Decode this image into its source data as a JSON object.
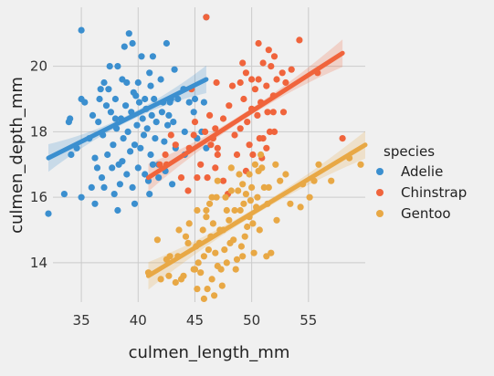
{
  "chart_data": {
    "type": "scatter",
    "title": "",
    "xlabel": "culmen_length_mm",
    "ylabel": "culmen_depth_mm",
    "xlim": [
      32.5,
      60
    ],
    "ylim": [
      12.8,
      21.8
    ],
    "xticks": [
      35,
      40,
      45,
      50,
      55
    ],
    "yticks": [
      14,
      16,
      18,
      20
    ],
    "grid": true,
    "legend": {
      "title": "species",
      "position": "right"
    },
    "series": [
      {
        "name": "Adelie",
        "color": "#3b8fcf",
        "regression": {
          "x_start": 32.1,
          "x_end": 46.0,
          "y_start": 17.2,
          "y_end": 19.6
        },
        "points": [
          [
            35.0,
            21.1
          ],
          [
            38.8,
            20.6
          ],
          [
            39.2,
            21.0
          ],
          [
            39.5,
            20.7
          ],
          [
            40.3,
            20.3
          ],
          [
            41.3,
            20.3
          ],
          [
            42.5,
            20.7
          ],
          [
            43.2,
            19.9
          ],
          [
            46.0,
            21.5
          ],
          [
            36.7,
            19.3
          ],
          [
            37.0,
            19.5
          ],
          [
            37.5,
            20.0
          ],
          [
            38.2,
            20.0
          ],
          [
            38.6,
            19.6
          ],
          [
            39.0,
            19.5
          ],
          [
            39.8,
            19.1
          ],
          [
            40.6,
            19.0
          ],
          [
            41.0,
            19.8
          ],
          [
            42.0,
            19.6
          ],
          [
            42.9,
            19.0
          ],
          [
            44.0,
            19.3
          ],
          [
            45.8,
            18.9
          ],
          [
            34.0,
            18.4
          ],
          [
            34.6,
            17.5
          ],
          [
            35.0,
            19.0
          ],
          [
            35.7,
            17.8
          ],
          [
            36.0,
            18.5
          ],
          [
            36.2,
            17.2
          ],
          [
            36.5,
            18.3
          ],
          [
            36.9,
            17.9
          ],
          [
            37.2,
            18.8
          ],
          [
            37.3,
            17.3
          ],
          [
            37.6,
            18.6
          ],
          [
            37.8,
            17.6
          ],
          [
            38.0,
            19.0
          ],
          [
            38.1,
            18.1
          ],
          [
            38.3,
            17.0
          ],
          [
            38.5,
            18.4
          ],
          [
            38.7,
            17.8
          ],
          [
            38.9,
            18.8
          ],
          [
            39.1,
            18.0
          ],
          [
            39.3,
            17.4
          ],
          [
            39.4,
            18.6
          ],
          [
            39.6,
            19.2
          ],
          [
            39.7,
            17.6
          ],
          [
            39.9,
            18.2
          ],
          [
            40.1,
            18.9
          ],
          [
            40.2,
            17.5
          ],
          [
            40.4,
            18.4
          ],
          [
            40.5,
            17.9
          ],
          [
            40.7,
            18.7
          ],
          [
            40.8,
            18.1
          ],
          [
            41.1,
            17.3
          ],
          [
            41.2,
            18.5
          ],
          [
            41.4,
            19.0
          ],
          [
            41.5,
            17.8
          ],
          [
            41.6,
            18.3
          ],
          [
            41.8,
            17.0
          ],
          [
            42.1,
            18.6
          ],
          [
            42.2,
            18.9
          ],
          [
            42.3,
            17.7
          ],
          [
            42.6,
            18.2
          ],
          [
            42.8,
            18.9
          ],
          [
            43.1,
            18.3
          ],
          [
            43.3,
            17.5
          ],
          [
            43.5,
            19.0
          ],
          [
            44.1,
            18.0
          ],
          [
            44.5,
            18.9
          ],
          [
            45.0,
            19.0
          ],
          [
            45.6,
            18.0
          ],
          [
            36.4,
            16.9
          ],
          [
            36.8,
            16.6
          ],
          [
            37.0,
            16.3
          ],
          [
            37.7,
            16.9
          ],
          [
            38.4,
            16.4
          ],
          [
            38.6,
            17.1
          ],
          [
            39.0,
            16.7
          ],
          [
            39.5,
            16.3
          ],
          [
            40.0,
            16.9
          ],
          [
            40.6,
            16.7
          ],
          [
            41.0,
            16.1
          ],
          [
            41.3,
            17.0
          ],
          [
            41.8,
            16.6
          ],
          [
            35.0,
            16.0
          ],
          [
            33.5,
            16.1
          ],
          [
            32.1,
            15.5
          ],
          [
            35.9,
            16.3
          ],
          [
            36.2,
            15.8
          ],
          [
            37.9,
            16.1
          ],
          [
            38.2,
            15.6
          ],
          [
            39.7,
            15.8
          ],
          [
            40.9,
            16.5
          ],
          [
            42.4,
            16.8
          ],
          [
            43.0,
            16.4
          ],
          [
            44.1,
            17.3
          ],
          [
            34.1,
            17.3
          ],
          [
            33.9,
            18.3
          ],
          [
            35.3,
            18.9
          ],
          [
            36.6,
            19.0
          ],
          [
            37.4,
            19.3
          ],
          [
            38.0,
            18.4
          ],
          [
            40.0,
            19.5
          ],
          [
            41.1,
            19.4
          ],
          [
            42.7,
            18.5
          ],
          [
            44.9,
            18.6
          ],
          [
            45.2,
            17.8
          ],
          [
            46.0,
            17.5
          ]
        ]
      },
      {
        "name": "Chinstrap",
        "color": "#f0643c",
        "regression": {
          "x_start": 40.9,
          "x_end": 58.0,
          "y_start": 16.6,
          "y_end": 20.4
        },
        "points": [
          [
            45.5,
            17.0
          ],
          [
            46.1,
            16.6
          ],
          [
            46.8,
            16.9
          ],
          [
            47.0,
            17.3
          ],
          [
            47.5,
            16.5
          ],
          [
            47.9,
            16.1
          ],
          [
            46.4,
            17.6
          ],
          [
            45.9,
            18.0
          ],
          [
            44.5,
            17.5
          ],
          [
            44.9,
            17.9
          ],
          [
            43.3,
            17.6
          ],
          [
            42.9,
            17.9
          ],
          [
            42.4,
            17.3
          ],
          [
            41.9,
            17.0
          ],
          [
            43.8,
            16.6
          ],
          [
            44.4,
            16.2
          ],
          [
            46.3,
            18.5
          ],
          [
            46.8,
            18.1
          ],
          [
            47.5,
            18.4
          ],
          [
            48.0,
            18.8
          ],
          [
            48.5,
            17.9
          ],
          [
            49.0,
            18.1
          ],
          [
            49.3,
            19.0
          ],
          [
            49.6,
            18.3
          ],
          [
            49.8,
            17.6
          ],
          [
            50.0,
            18.7
          ],
          [
            50.3,
            19.3
          ],
          [
            50.5,
            18.5
          ],
          [
            50.6,
            19.6
          ],
          [
            50.8,
            18.9
          ],
          [
            51.0,
            20.1
          ],
          [
            51.3,
            19.4
          ],
          [
            51.4,
            18.6
          ],
          [
            51.7,
            20.0
          ],
          [
            51.9,
            19.1
          ],
          [
            52.0,
            18.0
          ],
          [
            52.2,
            19.6
          ],
          [
            52.7,
            19.8
          ],
          [
            52.8,
            18.6
          ],
          [
            53.5,
            19.9
          ],
          [
            54.2,
            20.8
          ],
          [
            55.8,
            19.8
          ],
          [
            58.0,
            17.8
          ],
          [
            51.0,
            17.8
          ],
          [
            50.1,
            17.3
          ],
          [
            49.5,
            16.8
          ],
          [
            48.7,
            17.3
          ],
          [
            49.0,
            19.5
          ],
          [
            49.5,
            19.8
          ],
          [
            50.0,
            19.6
          ],
          [
            50.9,
            17.2
          ],
          [
            46.0,
            21.5
          ],
          [
            50.6,
            20.7
          ],
          [
            49.2,
            20.1
          ],
          [
            47.0,
            17.5
          ],
          [
            45.2,
            16.6
          ],
          [
            52.0,
            20.3
          ],
          [
            53.0,
            19.5
          ],
          [
            51.5,
            20.5
          ],
          [
            48.3,
            19.4
          ],
          [
            45.0,
            18.3
          ],
          [
            44.7,
            19.3
          ],
          [
            46.9,
            19.5
          ],
          [
            42.5,
            17.0
          ],
          [
            51.9,
            18.6
          ],
          [
            51.6,
            18.0
          ],
          [
            51.3,
            17.5
          ],
          [
            50.7,
            17.8
          ],
          [
            46.6,
            17.8
          ]
        ]
      },
      {
        "name": "Gentoo",
        "color": "#e8a845",
        "regression": {
          "x_start": 40.9,
          "x_end": 60.0,
          "y_start": 13.6,
          "y_end": 17.6
        },
        "points": [
          [
            40.9,
            13.7
          ],
          [
            41.7,
            14.7
          ],
          [
            42.0,
            13.5
          ],
          [
            42.5,
            14.1
          ],
          [
            42.8,
            14.2
          ],
          [
            43.3,
            13.4
          ],
          [
            43.5,
            14.2
          ],
          [
            43.6,
            15.0
          ],
          [
            44.0,
            13.6
          ],
          [
            44.4,
            14.6
          ],
          [
            44.5,
            15.2
          ],
          [
            45.0,
            13.8
          ],
          [
            45.1,
            14.5
          ],
          [
            45.2,
            15.6
          ],
          [
            45.3,
            14.0
          ],
          [
            45.4,
            14.6
          ],
          [
            45.5,
            13.7
          ],
          [
            45.7,
            15.0
          ],
          [
            45.8,
            14.2
          ],
          [
            46.0,
            15.4
          ],
          [
            46.1,
            13.2
          ],
          [
            46.2,
            14.4
          ],
          [
            46.3,
            15.8
          ],
          [
            46.4,
            14.8
          ],
          [
            46.5,
            13.5
          ],
          [
            46.6,
            15.2
          ],
          [
            46.8,
            14.3
          ],
          [
            46.9,
            16.0
          ],
          [
            47.0,
            13.9
          ],
          [
            47.2,
            15.0
          ],
          [
            47.3,
            13.8
          ],
          [
            47.5,
            15.0
          ],
          [
            47.6,
            14.4
          ],
          [
            47.7,
            16.0
          ],
          [
            47.8,
            14.0
          ],
          [
            48.0,
            15.3
          ],
          [
            48.1,
            14.6
          ],
          [
            48.2,
            16.2
          ],
          [
            48.4,
            14.7
          ],
          [
            48.5,
            15.6
          ],
          [
            48.7,
            14.1
          ],
          [
            48.8,
            16.2
          ],
          [
            49.0,
            15.6
          ],
          [
            49.1,
            14.5
          ],
          [
            49.2,
            16.4
          ],
          [
            49.3,
            15.8
          ],
          [
            49.4,
            14.8
          ],
          [
            49.5,
            16.1
          ],
          [
            49.6,
            15.1
          ],
          [
            49.8,
            16.7
          ],
          [
            49.9,
            15.9
          ],
          [
            50.0,
            16.3
          ],
          [
            50.1,
            15.2
          ],
          [
            50.2,
            14.3
          ],
          [
            50.4,
            15.7
          ],
          [
            50.5,
            16.0
          ],
          [
            50.7,
            15.0
          ],
          [
            50.8,
            17.3
          ],
          [
            51.1,
            16.3
          ],
          [
            51.3,
            14.2
          ],
          [
            51.5,
            16.3
          ],
          [
            52.1,
            17.0
          ],
          [
            52.2,
            15.3
          ],
          [
            53.4,
            15.8
          ],
          [
            54.3,
            15.7
          ],
          [
            55.1,
            16.0
          ],
          [
            55.9,
            17.0
          ],
          [
            59.6,
            17.0
          ],
          [
            58.6,
            17.2
          ],
          [
            57.0,
            16.5
          ],
          [
            52.5,
            16.5
          ],
          [
            51.7,
            14.3
          ],
          [
            51.4,
            15.8
          ],
          [
            50.6,
            16.8
          ],
          [
            50.3,
            17.0
          ],
          [
            49.8,
            15.4
          ],
          [
            49.2,
            14.2
          ],
          [
            48.6,
            13.8
          ],
          [
            47.4,
            13.3
          ],
          [
            46.7,
            13.0
          ],
          [
            45.8,
            12.9
          ],
          [
            45.2,
            13.2
          ],
          [
            44.9,
            13.8
          ],
          [
            43.8,
            13.5
          ],
          [
            42.7,
            13.6
          ],
          [
            44.2,
            14.8
          ],
          [
            46.0,
            15.6
          ],
          [
            47.8,
            15.6
          ],
          [
            48.9,
            16.7
          ],
          [
            50.9,
            16.9
          ],
          [
            53.0,
            16.7
          ],
          [
            54.5,
            16.4
          ],
          [
            55.5,
            16.5
          ],
          [
            47.0,
            16.5
          ],
          [
            46.5,
            16.0
          ],
          [
            48.2,
            16.9
          ]
        ]
      }
    ]
  }
}
